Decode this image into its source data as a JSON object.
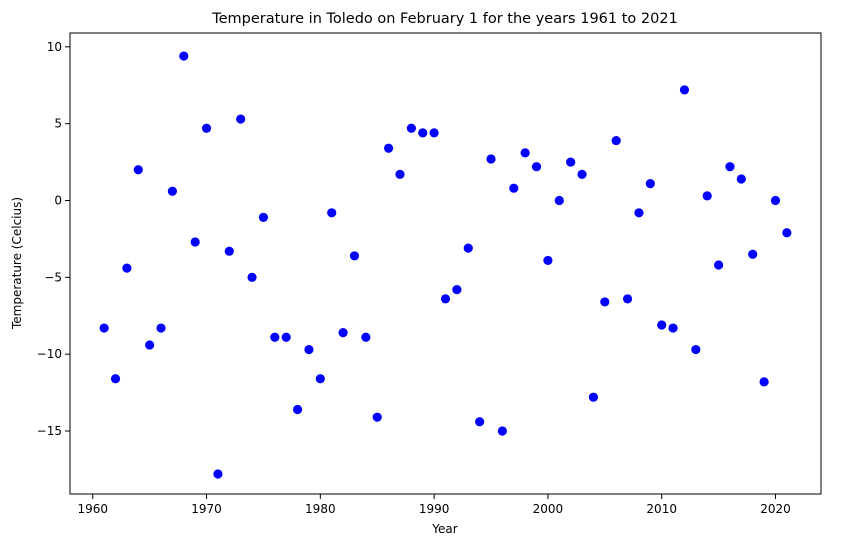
{
  "chart_data": {
    "type": "scatter",
    "title": "Temperature in Toledo on February 1 for the years 1961 to 2021",
    "xlabel": "Year",
    "ylabel": "Temperature (Celcius)",
    "xlim": [
      1958,
      2024
    ],
    "ylim": [
      -19.1,
      10.9
    ],
    "xticks": [
      1960,
      1970,
      1980,
      1990,
      2000,
      2010,
      2020
    ],
    "yticks": [
      10,
      5,
      0,
      -5,
      -10,
      -15
    ],
    "grid": false,
    "legend": "none",
    "marker_color": "#0000ff",
    "series": [
      {
        "x": [
          1961,
          1962,
          1963,
          1964,
          1965,
          1966,
          1967,
          1968,
          1969,
          1970,
          1971,
          1972,
          1973,
          1974,
          1975,
          1976,
          1977,
          1978,
          1979,
          1980,
          1981,
          1982,
          1983,
          1984,
          1985,
          1986,
          1987,
          1988,
          1989,
          1990,
          1991,
          1992,
          1993,
          1994,
          1995,
          1996,
          1997,
          1998,
          1999,
          2000,
          2001,
          2002,
          2003,
          2004,
          2005,
          2006,
          2007,
          2008,
          2009,
          2010,
          2011,
          2012,
          2013,
          2014,
          2015,
          2016,
          2017,
          2018,
          2019,
          2020,
          2021
        ],
        "y": [
          -8.3,
          -11.6,
          -4.4,
          2.0,
          -9.4,
          -8.3,
          0.6,
          9.4,
          -2.7,
          4.7,
          -17.8,
          -3.3,
          5.3,
          -5.0,
          -1.1,
          -8.9,
          -8.9,
          -13.6,
          -9.7,
          -11.6,
          -0.8,
          -8.6,
          -3.6,
          -8.9,
          -14.1,
          3.4,
          1.7,
          4.7,
          4.4,
          4.4,
          -6.4,
          -5.8,
          -3.1,
          -14.4,
          2.7,
          -15.0,
          0.8,
          3.1,
          2.2,
          -3.9,
          0.0,
          2.5,
          1.7,
          -12.8,
          -6.6,
          3.9,
          -6.4,
          -0.8,
          1.1,
          -8.1,
          -8.3,
          7.2,
          -9.7,
          0.3,
          -4.2,
          2.2,
          1.4,
          -3.5,
          -11.8,
          0.0,
          -2.1
        ]
      }
    ]
  }
}
